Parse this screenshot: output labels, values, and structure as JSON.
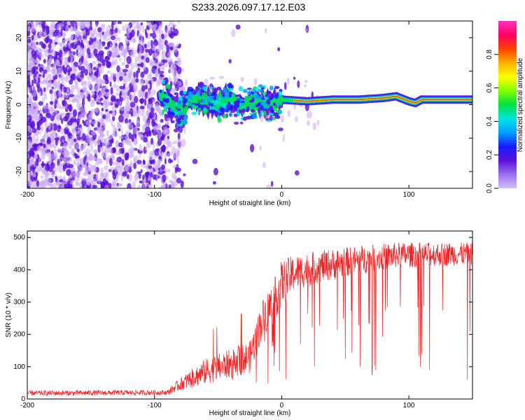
{
  "title": "S233.2026.097.17.12.E03",
  "colors": {
    "snr_line": "#ee2222",
    "scatter_core": "#5a10d8",
    "scatter_light": "#c9a8f4"
  },
  "chart_data": [
    {
      "type": "heatmap",
      "title": "S233.2026.097.17.12.E03",
      "xlabel": "Height of straight line (km)",
      "ylabel": "Frequency (Hz)",
      "xlim": [
        -200,
        150
      ],
      "ylim": [
        -25,
        25
      ],
      "xticks": [
        -200,
        -100,
        0,
        100
      ],
      "yticks": [
        -20,
        -10,
        0,
        10,
        20
      ],
      "colorbar": {
        "label": "Normalized spectral amplitude",
        "range": [
          0,
          1
        ],
        "ticks": [
          0.0,
          0.2,
          0.4,
          0.6,
          0.8
        ],
        "tick_labels": [
          "0.0",
          "0.2",
          "0.4",
          "0.6",
          "0.8"
        ],
        "colors": [
          "#cfc0f4",
          "#9a6ff0",
          "#5a10d8",
          "#1a1aff",
          "#00a0ff",
          "#00e5e5",
          "#00e040",
          "#80ff00",
          "#ffff00",
          "#ffb000",
          "#ff4000",
          "#ff0060",
          "#ff30c0"
        ]
      },
      "signal_track": {
        "description_points_x": [
          -95,
          -80,
          -70,
          -60,
          -50,
          -40,
          -30,
          -20,
          -10,
          0,
          20,
          40,
          60,
          80,
          90,
          100,
          105,
          110,
          150
        ],
        "frequency_hz": [
          3.0,
          -2.0,
          2.0,
          1.0,
          0.0,
          2.0,
          0.0,
          1.0,
          0.0,
          1.5,
          1.0,
          1.5,
          1.5,
          2.0,
          2.5,
          1.0,
          0.5,
          1.5,
          1.5
        ]
      }
    },
    {
      "type": "line",
      "xlabel": "Height of straight line (km)",
      "ylabel": "SNR (10 * v/v)",
      "xlim": [
        -200,
        150
      ],
      "ylim": [
        0,
        520
      ],
      "xticks": [
        -200,
        -100,
        0,
        100
      ],
      "yticks": [
        0,
        100,
        200,
        300,
        400,
        500
      ],
      "envelope": {
        "x": [
          -200,
          -90,
          -80,
          -60,
          -40,
          -25,
          -15,
          -5,
          0,
          10,
          30,
          60,
          90,
          150
        ],
        "median_snr": [
          18,
          20,
          45,
          85,
          110,
          130,
          250,
          310,
          360,
          390,
          410,
          430,
          445,
          450
        ],
        "noise_amplitude": [
          8,
          8,
          20,
          40,
          45,
          50,
          60,
          70,
          70,
          55,
          50,
          45,
          40,
          35
        ]
      }
    }
  ]
}
